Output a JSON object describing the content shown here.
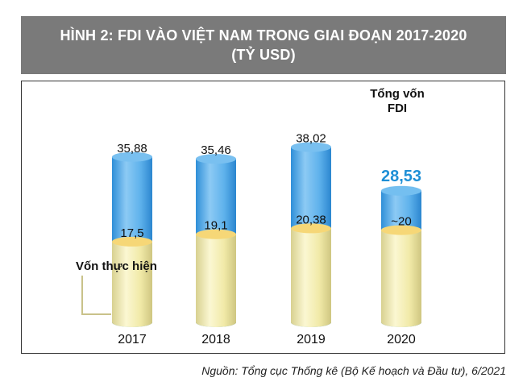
{
  "header": {
    "title_line1": "HÌNH 2: FDI VÀO VIỆT NAM TRONG GIAI ĐOẠN 2017-2020",
    "title_line2": "(TỶ USD)"
  },
  "source": "Nguồn: Tổng cục Thống kê (Bộ Kế hoạch và Đầu tư), 6/2021",
  "colors": {
    "total_accent": "#1e8fd6",
    "total_bar": "#5fb2ec",
    "implemented_bar": "#f3eeb0",
    "title_bg": "#7a7a7a"
  },
  "chart_data": {
    "type": "bar",
    "categories": [
      "2017",
      "2018",
      "2019",
      "2020"
    ],
    "series": [
      {
        "name": "Tổng vốn FDI",
        "values": [
          35.88,
          35.46,
          38.02,
          28.53
        ],
        "labels": [
          "35,88",
          "35,46",
          "38,02",
          "28,53"
        ]
      },
      {
        "name": "Vốn thực hiện",
        "values": [
          17.5,
          19.1,
          20.38,
          20
        ],
        "labels": [
          "17,5",
          "19,1",
          "20,38",
          "~20"
        ]
      }
    ],
    "legend": {
      "total_line1": "Tổng vốn",
      "total_line2": "FDI",
      "implemented": "Vốn thực hiện"
    },
    "highlight_category": "2020",
    "ylim": [
      0,
      40
    ]
  }
}
